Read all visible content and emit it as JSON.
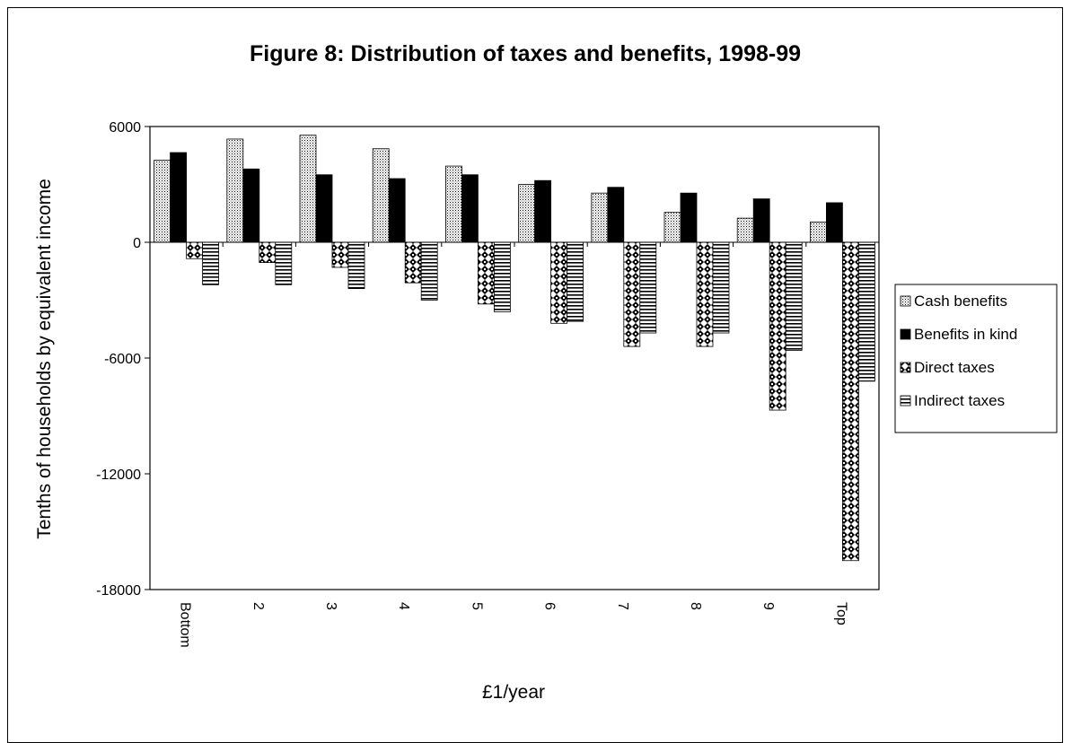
{
  "chart_data": {
    "type": "bar",
    "title": "Figure 8: Distribution of taxes and benefits, 1998-99",
    "xlabel": "£1/year",
    "ylabel": "Tenths of households by equivalent income",
    "categories": [
      "Bottom",
      "2",
      "3",
      "4",
      "5",
      "6",
      "7",
      "8",
      "9",
      "Top"
    ],
    "y_ticks": [
      "6000",
      "0",
      "-6000",
      "-12000",
      "-18000"
    ],
    "ylim": [
      -18000,
      6000
    ],
    "legend_position": "right",
    "series": [
      {
        "name": "Cash benefits",
        "pattern": "dots-fine",
        "values": [
          4250,
          5350,
          5550,
          4850,
          3950,
          3000,
          2550,
          1550,
          1250,
          1050
        ]
      },
      {
        "name": "Benefits in kind",
        "pattern": "solid-black",
        "values": [
          4650,
          3800,
          3500,
          3300,
          3500,
          3200,
          2850,
          2550,
          2250,
          2050
        ]
      },
      {
        "name": "Direct taxes",
        "pattern": "checker",
        "values": [
          -850,
          -1050,
          -1300,
          -2100,
          -3200,
          -4200,
          -5400,
          -5400,
          -8700,
          -16500
        ]
      },
      {
        "name": "Indirect taxes",
        "pattern": "horizontal-stripes",
        "values": [
          -2200,
          -2200,
          -2400,
          -3000,
          -3600,
          -4100,
          -4700,
          -4700,
          -5600,
          -7200
        ]
      }
    ],
    "colors": {
      "frame": "#000000",
      "background": "#ffffff",
      "bar_stroke": "#000000"
    }
  }
}
